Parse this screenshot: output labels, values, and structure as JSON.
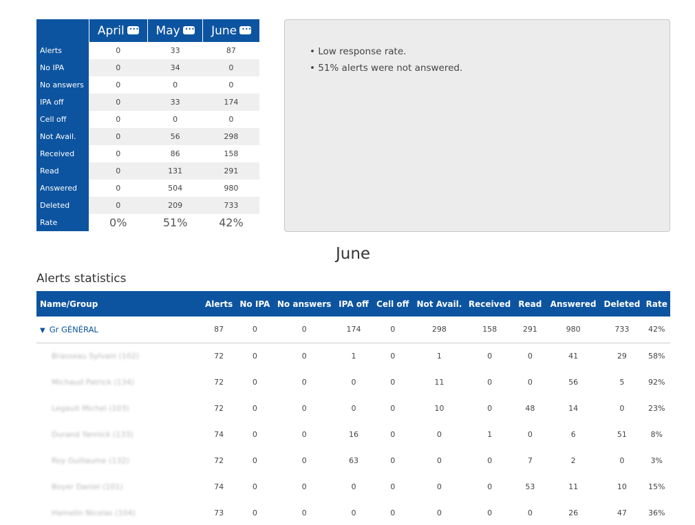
{
  "summary": {
    "months": [
      "April",
      "May",
      "June"
    ],
    "rows": [
      {
        "label": "Alerts",
        "values": [
          "0",
          "33",
          "87"
        ]
      },
      {
        "label": "No IPA",
        "values": [
          "0",
          "34",
          "0"
        ]
      },
      {
        "label": "No answers",
        "values": [
          "0",
          "0",
          "0"
        ]
      },
      {
        "label": "IPA off",
        "values": [
          "0",
          "33",
          "174"
        ]
      },
      {
        "label": "Cell off",
        "values": [
          "0",
          "0",
          "0"
        ]
      },
      {
        "label": "Not Avail.",
        "values": [
          "0",
          "56",
          "298"
        ]
      },
      {
        "label": "Received",
        "values": [
          "0",
          "86",
          "158"
        ]
      },
      {
        "label": "Read",
        "values": [
          "0",
          "131",
          "291"
        ]
      },
      {
        "label": "Answered",
        "values": [
          "0",
          "504",
          "980"
        ]
      },
      {
        "label": "Deleted",
        "values": [
          "0",
          "209",
          "733"
        ]
      },
      {
        "label": "Rate",
        "values": [
          "0%",
          "51%",
          "42%"
        ]
      }
    ]
  },
  "notes": [
    "• Low response rate.",
    "• 51% alerts were not answered."
  ],
  "month_heading": "June",
  "section_title": "Alerts statistics",
  "stats": {
    "headers": [
      "Name/Group",
      "Alerts",
      "No IPA",
      "No answers",
      "IPA off",
      "Cell off",
      "Not Avail.",
      "Received",
      "Read",
      "Answered",
      "Deleted",
      "Rate"
    ],
    "group": {
      "expand_icon": "▼",
      "name": "Gr GÉNÉRAL",
      "values": [
        "87",
        "0",
        "0",
        "174",
        "0",
        "298",
        "158",
        "291",
        "980",
        "733",
        "42%"
      ]
    },
    "members": [
      {
        "name": "Brasseau Sylvain (102)",
        "values": [
          "72",
          "0",
          "0",
          "1",
          "0",
          "1",
          "0",
          "0",
          "41",
          "29",
          "58%"
        ]
      },
      {
        "name": "Michaud Patrick (134)",
        "values": [
          "72",
          "0",
          "0",
          "0",
          "0",
          "11",
          "0",
          "0",
          "56",
          "5",
          "92%"
        ]
      },
      {
        "name": "Legault Michel (103)",
        "values": [
          "72",
          "0",
          "0",
          "0",
          "0",
          "10",
          "0",
          "48",
          "14",
          "0",
          "23%"
        ]
      },
      {
        "name": "Durand Yannick (133)",
        "values": [
          "74",
          "0",
          "0",
          "16",
          "0",
          "0",
          "1",
          "0",
          "6",
          "51",
          "8%"
        ]
      },
      {
        "name": "Roy Guillaume (132)",
        "values": [
          "72",
          "0",
          "0",
          "63",
          "0",
          "0",
          "0",
          "7",
          "2",
          "0",
          "3%"
        ]
      },
      {
        "name": "Boyer Daniel (101)",
        "values": [
          "74",
          "0",
          "0",
          "0",
          "0",
          "0",
          "0",
          "53",
          "11",
          "10",
          "15%"
        ]
      },
      {
        "name": "Hamelin Nicolas (104)",
        "values": [
          "73",
          "0",
          "0",
          "0",
          "0",
          "0",
          "0",
          "0",
          "26",
          "47",
          "36%"
        ]
      }
    ]
  }
}
